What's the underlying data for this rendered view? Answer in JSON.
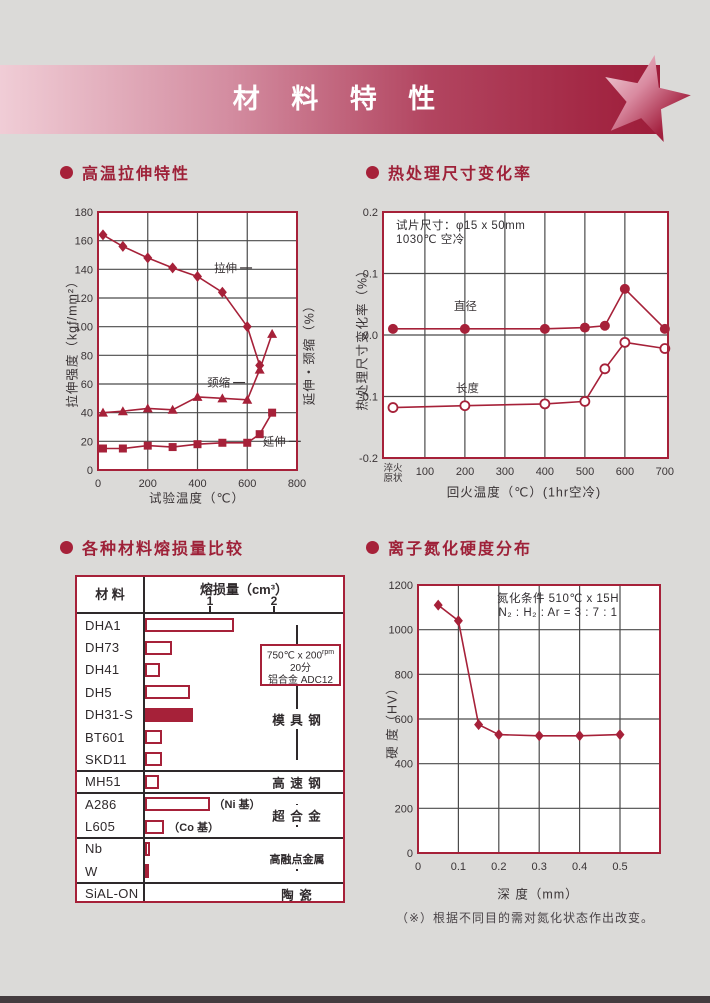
{
  "page": {
    "banner_title": "材 料 特 性",
    "footnote": "（※）根据不同目的需对氮化状态作出改变。",
    "colors": {
      "accent": "#A62139",
      "background": "#DBDAD8",
      "plot_bg": "#FFFFFF",
      "grid": "#4B4B4B",
      "text": "#3A3436"
    }
  },
  "chart_data": [
    {
      "type": "line",
      "title": "高温拉伸特性",
      "xlabel": "试验温度（℃）",
      "ylabel": "拉伸强度（kgf/mm²）",
      "ylabel_right": "延伸・颈缩（%）",
      "xlim": [
        0,
        800
      ],
      "ylim": [
        0,
        180
      ],
      "xticks": [
        0,
        200,
        400,
        600,
        800
      ],
      "ytick_step": 20,
      "grid": "on",
      "series": [
        {
          "name": "拉伸",
          "marker": "diamond",
          "x": [
            20,
            100,
            200,
            300,
            400,
            500,
            600,
            650
          ],
          "y": [
            164,
            156,
            148,
            141,
            135,
            124,
            100,
            73
          ],
          "label_at": [
            559,
            141
          ]
        },
        {
          "name": "颈缩",
          "marker": "triangle",
          "x": [
            20,
            100,
            200,
            300,
            400,
            500,
            600,
            650,
            700
          ],
          "y": [
            40,
            41,
            43,
            42,
            51,
            50,
            49,
            70,
            95
          ],
          "label_at": [
            531,
            61
          ]
        },
        {
          "name": "延伸",
          "marker": "square",
          "x": [
            20,
            100,
            200,
            300,
            400,
            500,
            600,
            650,
            700
          ],
          "y": [
            15,
            15,
            17,
            16,
            18,
            19,
            19,
            25,
            40
          ],
          "label_at": [
            755,
            20
          ]
        }
      ]
    },
    {
      "type": "line",
      "title": "热处理尺寸变化率",
      "xlabel": "回火温度（℃）(1hr空冷)",
      "ylabel": "热处理尺寸变化率（%）",
      "annotation": [
        "试片尺寸：φ15 x 50mm",
        "1030℃ 空冷"
      ],
      "ylim": [
        -0.2,
        0.2
      ],
      "yticks": [
        0.2,
        0.1,
        0.0,
        -0.1,
        -0.2
      ],
      "xticklabels": [
        "淬火\n原状",
        "100",
        "200",
        "300",
        "400",
        "500",
        "600",
        "700"
      ],
      "grid": "on",
      "series": [
        {
          "name": "直径",
          "marker": "circle-filled",
          "x": [
            "淬火原状",
            200,
            400,
            500,
            550,
            600,
            700
          ],
          "y": [
            0.01,
            0.01,
            0.01,
            0.012,
            0.015,
            0.075,
            0.01
          ],
          "label_at": [
            230,
            0.047
          ]
        },
        {
          "name": "长度",
          "marker": "circle-open",
          "x": [
            "淬火原状",
            200,
            400,
            500,
            550,
            600,
            700
          ],
          "y": [
            -0.118,
            -0.115,
            -0.112,
            -0.108,
            -0.055,
            -0.012,
            -0.022
          ],
          "label_at": [
            235,
            -0.086
          ]
        }
      ]
    },
    {
      "type": "bar",
      "title": "各种材料熔损量比较",
      "material_header": "材 料",
      "value_header": "熔损量（cm³）",
      "value_ticks": [
        1,
        2
      ],
      "note_box": {
        "line1": "750℃ x 200",
        "line1_sup": "rpm",
        "line2": "20分",
        "line3": "铝合金 ADC12"
      },
      "rows": [
        {
          "material": "DHA1",
          "value": 1.38,
          "filled": false
        },
        {
          "material": "DH73",
          "value": 0.42,
          "filled": false
        },
        {
          "material": "DH41",
          "value": 0.23,
          "filled": false
        },
        {
          "material": "DH5",
          "value": 0.7,
          "filled": false
        },
        {
          "material": "DH31-S",
          "value": 0.74,
          "filled": true
        },
        {
          "material": "BT601",
          "value": 0.26,
          "filled": false
        },
        {
          "material": "SKD11",
          "value": 0.27,
          "filled": false
        },
        {
          "material": "MH51",
          "value": 0.21,
          "filled": false
        },
        {
          "material": "A286",
          "value": 1.0,
          "filled": false,
          "note": "（Ni 基）"
        },
        {
          "material": "L605",
          "value": 0.3,
          "filled": false,
          "note": "（Co 基）"
        },
        {
          "material": "Nb",
          "value": 0.07,
          "filled": false
        },
        {
          "material": "W",
          "value": 0.06,
          "filled": false
        },
        {
          "material": "SiAL-ON",
          "value": 0,
          "filled": false
        }
      ],
      "groups": [
        {
          "label": "模 具 钢",
          "from": 0,
          "to": 6
        },
        {
          "label": "高 速 钢",
          "from": 7,
          "to": 7
        },
        {
          "label": "超 合 金",
          "from": 8,
          "to": 9
        },
        {
          "label": "高融点金属",
          "from": 10,
          "to": 11
        },
        {
          "label": "陶 瓷",
          "from": 12,
          "to": 12
        }
      ]
    },
    {
      "type": "line",
      "title": "离子氮化硬度分布",
      "xlabel": "深 度（mm）",
      "ylabel": "硬 度（HV）",
      "annotation": [
        "氮化条件 510℃ x 15H",
        "N₂ : H₂ : Ar = 3 : 7 : 1"
      ],
      "xlim": [
        0,
        0.5
      ],
      "ylim": [
        0,
        1200
      ],
      "xticks": [
        0,
        0.1,
        0.2,
        0.3,
        0.4,
        0.5
      ],
      "ytick_step": 200,
      "grid": "on",
      "series": [
        {
          "name": "硬度",
          "marker": "diamond",
          "x": [
            0.05,
            0.1,
            0.15,
            0.2,
            0.3,
            0.4,
            0.5
          ],
          "y": [
            1110,
            1040,
            575,
            530,
            525,
            525,
            530
          ]
        }
      ]
    }
  ]
}
